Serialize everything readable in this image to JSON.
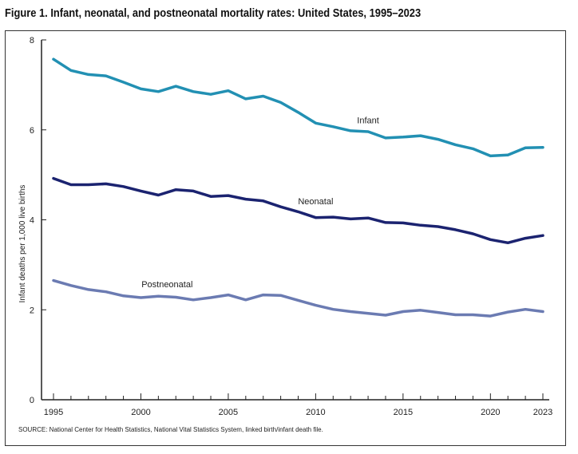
{
  "chart_data": {
    "type": "line",
    "title": "Figure 1. Infant, neonatal, and postneonatal mortality rates: United States, 1995–2023",
    "xlabel": "",
    "ylabel": "Infant deaths per 1,000 live births",
    "ylim": [
      0,
      8
    ],
    "xlim": [
      1995,
      2023
    ],
    "yticks": [
      0,
      2,
      4,
      6,
      8
    ],
    "xtick_labels": [
      "1995",
      "2000",
      "2005",
      "2010",
      "2015",
      "2020",
      "2023"
    ],
    "grid": false,
    "x": [
      1995,
      1996,
      1997,
      1998,
      1999,
      2000,
      2001,
      2002,
      2003,
      2004,
      2005,
      2006,
      2007,
      2008,
      2009,
      2010,
      2011,
      2012,
      2013,
      2014,
      2015,
      2016,
      2017,
      2018,
      2019,
      2020,
      2021,
      2022,
      2023
    ],
    "series": [
      {
        "name": "Infant",
        "color": "#2290b3",
        "values": [
          7.57,
          7.32,
          7.23,
          7.2,
          7.06,
          6.91,
          6.85,
          6.97,
          6.85,
          6.79,
          6.87,
          6.69,
          6.75,
          6.61,
          6.39,
          6.15,
          6.07,
          5.98,
          5.96,
          5.82,
          5.84,
          5.87,
          5.79,
          5.67,
          5.58,
          5.42,
          5.44,
          5.6,
          5.61
        ]
      },
      {
        "name": "Neonatal",
        "color": "#1b2370",
        "values": [
          4.92,
          4.78,
          4.78,
          4.8,
          4.74,
          4.64,
          4.55,
          4.67,
          4.64,
          4.52,
          4.54,
          4.46,
          4.42,
          4.29,
          4.18,
          4.05,
          4.06,
          4.02,
          4.04,
          3.94,
          3.93,
          3.88,
          3.85,
          3.78,
          3.69,
          3.56,
          3.49,
          3.59,
          3.65
        ]
      },
      {
        "name": "Postneonatal",
        "color": "#6b7bb2",
        "values": [
          2.65,
          2.54,
          2.45,
          2.4,
          2.31,
          2.27,
          2.3,
          2.28,
          2.22,
          2.27,
          2.33,
          2.22,
          2.33,
          2.32,
          2.21,
          2.1,
          2.01,
          1.96,
          1.92,
          1.88,
          1.96,
          1.99,
          1.94,
          1.89,
          1.89,
          1.86,
          1.95,
          2.01,
          1.96
        ]
      }
    ],
    "source": "SOURCE: National Center for Health Statistics, National Vital Statistics System, linked birth/infant death file."
  }
}
